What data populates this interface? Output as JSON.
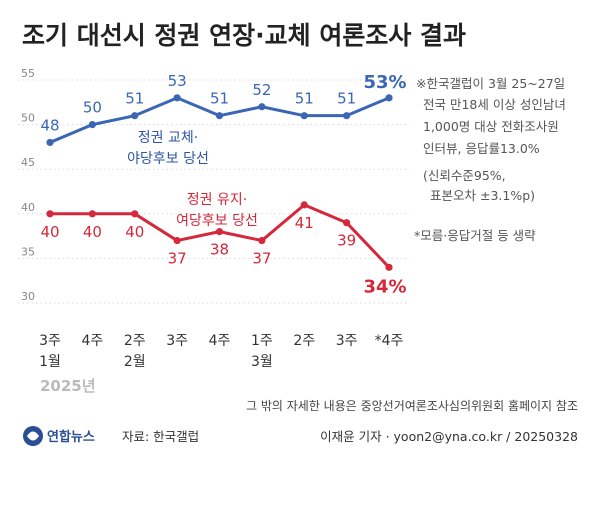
{
  "title": "조기 대선시 정권 연장·교체 여론조사 결과",
  "chart_data": {
    "type": "line",
    "categories": [
      {
        "line1": "3주",
        "line2": "1월"
      },
      {
        "line1": "4주",
        "line2": ""
      },
      {
        "line1": "2주",
        "line2": "2월"
      },
      {
        "line1": "3주",
        "line2": ""
      },
      {
        "line1": "4주",
        "line2": ""
      },
      {
        "line1": "1주",
        "line2": "3월"
      },
      {
        "line1": "2주",
        "line2": ""
      },
      {
        "line1": "3주",
        "line2": ""
      },
      {
        "line1": "*4주",
        "line2": ""
      }
    ],
    "year_label": "2025년",
    "y_ticks": [
      "55",
      "50",
      "45",
      "40",
      "35",
      "30"
    ],
    "ylim": [
      30,
      55
    ],
    "series": [
      {
        "name_line1": "정권 교체·",
        "name_line2": "야당후보 당선",
        "color": "#3a66b5",
        "values": [
          48,
          50,
          51,
          53,
          51,
          52,
          51,
          51,
          53
        ],
        "labels": [
          "48",
          "50",
          "51",
          "53",
          "51",
          "52",
          "51",
          "51",
          "53%"
        ]
      },
      {
        "name_line1": "정권 유지·",
        "name_line2": "여당후보 당선",
        "color": "#d5283a",
        "values": [
          40,
          40,
          40,
          37,
          38,
          37,
          41,
          39,
          34
        ],
        "labels": [
          "40",
          "40",
          "40",
          "37",
          "38",
          "37",
          "41",
          "39",
          "34%"
        ]
      }
    ]
  },
  "notes": [
    "※한국갤럽이 3월 25~27일",
    "전국 만18세 이상 성인남녀",
    "1,000명 대상 전화조사원",
    "인터뷰, 응답률13.0%",
    "(신뢰수준95%,",
    "표본오차 ±3.1%p)"
  ],
  "note_omit": "*모름·응답거절 등 생략",
  "footer_reference": "그 밖의 자세한 내용은 중앙선거여론조사심의위원회 홈페이지 참조",
  "source": "자료: 한국갤럽",
  "credit": "이재윤 기자 · yoon2@yna.co.kr / 20250328",
  "logo_text": "연합뉴스",
  "colors": {
    "blue": "#3a66b5",
    "red": "#d5283a",
    "grid": "#d9d9d9"
  }
}
